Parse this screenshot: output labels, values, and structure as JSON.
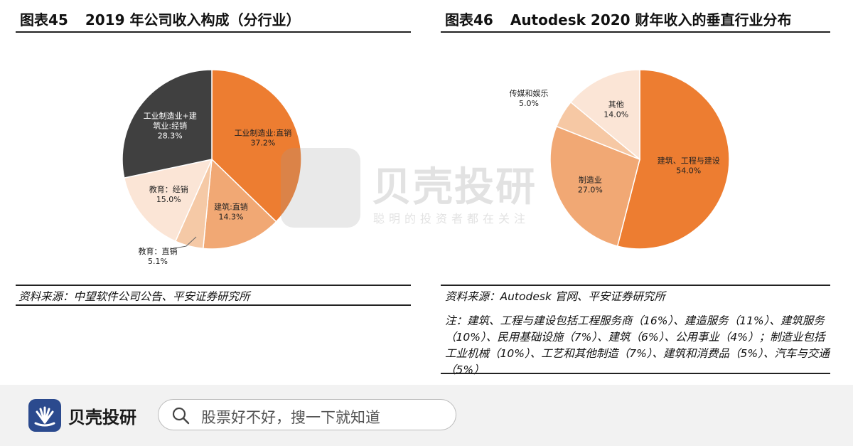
{
  "chart_data": [
    {
      "type": "pie",
      "figure_no": "图表45",
      "title": "2019 年公司收入构成（分行业）",
      "slices": [
        {
          "label": "工业制造业:直销",
          "value": 37.2,
          "color": "#ed7d31",
          "display": "37.2%"
        },
        {
          "label": "建筑:直销",
          "value": 14.3,
          "color": "#f1a874",
          "display": "14.3%"
        },
        {
          "label": "教育：直销",
          "value": 5.1,
          "color": "#f5c9a6",
          "display": "5.1%"
        },
        {
          "label": "教育：经销",
          "value": 15.0,
          "color": "#fbe5d6",
          "display": "15.0%"
        },
        {
          "label": "工业制造业+建筑业:经销",
          "value": 28.3,
          "color": "#404040",
          "display": "28.3%"
        }
      ],
      "source": "资料来源：中望软件公司公告、平安证券研究所"
    },
    {
      "type": "pie",
      "figure_no": "图表46",
      "title": "Autodesk 2020 财年收入的垂直行业分布",
      "slices": [
        {
          "label": "建筑、工程与建设",
          "value": 54.0,
          "color": "#ed7d31",
          "display": "54.0%"
        },
        {
          "label": "制造业",
          "value": 27.0,
          "color": "#f1a874",
          "display": "27.0%"
        },
        {
          "label": "传媒和娱乐",
          "value": 5.0,
          "color": "#f6c8a4",
          "display": "5.0%"
        },
        {
          "label": "其他",
          "value": 14.0,
          "color": "#fbe5d6",
          "display": "14.0%"
        }
      ],
      "source": "资料来源：Autodesk 官网、平安证券研究所",
      "note": "注：建筑、工程与建设包括工程服务商（16%）、建造服务（11%）、建筑服务（10%）、民用基础设施（7%）、建筑（6%）、公用事业（4%）；制造业包括工业机械（10%）、工艺和其他制造（7%）、建筑和消费品（5%）、汽车与交通（5%）"
    }
  ],
  "watermark": {
    "name": "贝壳投研",
    "slogan": "聪明的投资者都在关注"
  },
  "bottom_bar": {
    "brand": "贝壳投研",
    "search_placeholder": "股票好不好，搜一下就知道"
  },
  "colors": {
    "accent": "#ed7d31",
    "dark": "#404040",
    "brand": "#2b4a8e"
  }
}
